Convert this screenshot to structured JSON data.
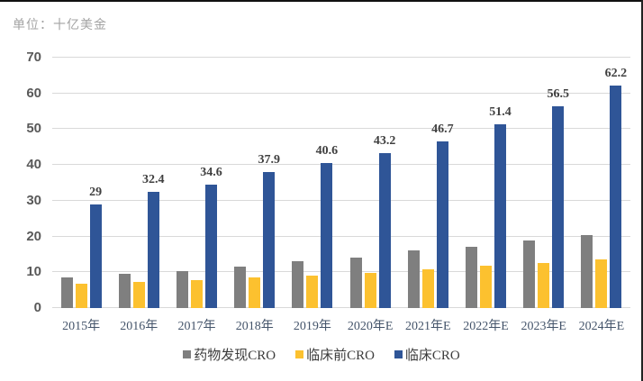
{
  "unit_label": "单位：十亿美金",
  "chart_data": {
    "type": "bar",
    "title": "",
    "unit": "单位：十亿美金",
    "categories": [
      "2015年",
      "2016年",
      "2017年",
      "2018年",
      "2019年",
      "2020年E",
      "2021年E",
      "2022年E",
      "2023年E",
      "2024年E"
    ],
    "series": [
      {
        "name": "药物发现CRO",
        "color": "#7f7f7f",
        "values": [
          8.5,
          9.5,
          10.4,
          11.6,
          13.0,
          14.2,
          16.1,
          17.2,
          18.9,
          20.5
        ],
        "show_labels": false
      },
      {
        "name": "临床前CRO",
        "color": "#fcc12f",
        "values": [
          6.8,
          7.2,
          7.9,
          8.6,
          9.1,
          9.8,
          10.8,
          11.9,
          12.6,
          13.6
        ],
        "show_labels": false
      },
      {
        "name": "临床CRO",
        "color": "#2f5597",
        "values": [
          29,
          32.4,
          34.6,
          37.9,
          40.6,
          43.2,
          46.7,
          51.4,
          56.5,
          62.2
        ],
        "labels": [
          "29",
          "32.4",
          "34.6",
          "37.9",
          "40.6",
          "43.2",
          "46.7",
          "51.4",
          "56.5",
          "62.2"
        ],
        "show_labels": true
      }
    ],
    "ylim": [
      0,
      70
    ],
    "yticks": [
      0,
      10,
      20,
      30,
      40,
      50,
      60,
      70
    ],
    "grid": true,
    "gridline_color": "#d9d9d9",
    "legend_position": "bottom"
  }
}
